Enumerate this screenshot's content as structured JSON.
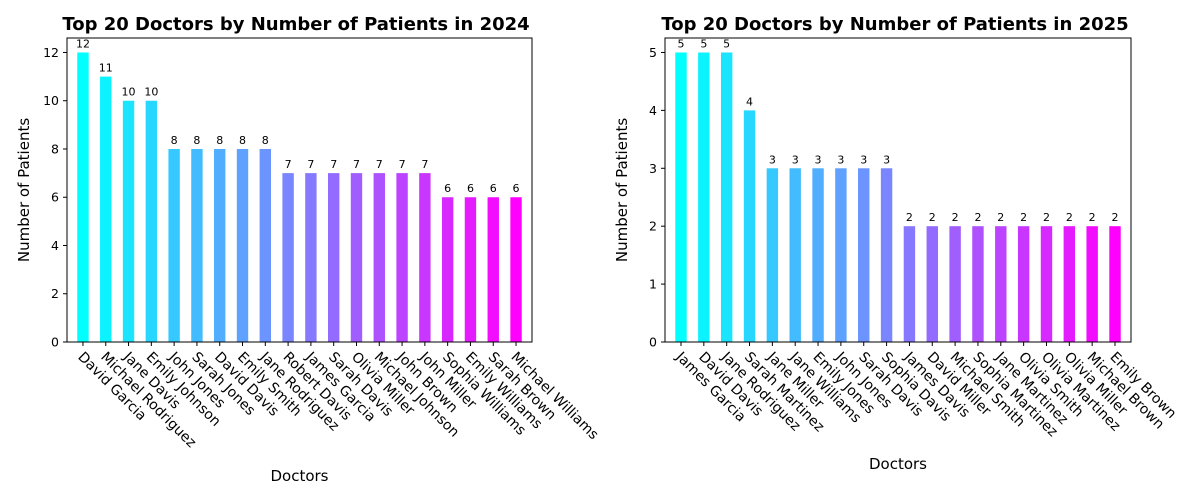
{
  "chart_data": [
    {
      "type": "bar",
      "title": "Top 20 Doctors by Number of Patients in 2024",
      "xlabel": "Doctors",
      "ylabel": "Number of Patients",
      "ylim": [
        0,
        12.6
      ],
      "yticks": [
        "0",
        "2",
        "4",
        "6",
        "8",
        "10",
        "12"
      ],
      "categories": [
        "David Garcia",
        "Michael Rodriguez",
        "Jane Davis",
        "Emily Johnson",
        "John Jones",
        "Sarah Jones",
        "David Davis",
        "Emily Smith",
        "Jane Rodriguez",
        "Robert Davis",
        "James Garcia",
        "Sarah Davis",
        "Olivia Miller",
        "Michael Johnson",
        "John Brown",
        "John Miller",
        "Sophia Williams",
        "Emily Williams",
        "Sarah Brown",
        "Michael Williams"
      ],
      "values": [
        12,
        11,
        10,
        10,
        8,
        8,
        8,
        8,
        8,
        7,
        7,
        7,
        7,
        7,
        7,
        7,
        6,
        6,
        6,
        6
      ],
      "data_labels": [
        "12",
        "11",
        "10",
        "10",
        "8",
        "8",
        "8",
        "8",
        "8",
        "7",
        "7",
        "7",
        "7",
        "7",
        "7",
        "7",
        "6",
        "6",
        "6",
        "6"
      ],
      "colormap": "cool",
      "grid": false
    },
    {
      "type": "bar",
      "title": "Top 20 Doctors by Number of Patients in 2025",
      "xlabel": "Doctors",
      "ylabel": "Number of Patients",
      "ylim": [
        0,
        5.25
      ],
      "yticks": [
        "0",
        "1",
        "2",
        "3",
        "4",
        "5"
      ],
      "categories": [
        "James Garcia",
        "David Davis",
        "Jane Rodriguez",
        "Sarah Martinez",
        "Jane Miller",
        "Jane Williams",
        "Emily Jones",
        "John Jones",
        "Sarah Davis",
        "Sophia Davis",
        "James Davis",
        "David Miller",
        "Michael Smith",
        "Sophia Martinez",
        "Jane Martinez",
        "Olivia Smith",
        "Olivia Martinez",
        "Olivia Miller",
        "Michael Brown",
        "Emily Brown"
      ],
      "values": [
        5,
        5,
        5,
        4,
        3,
        3,
        3,
        3,
        3,
        3,
        2,
        2,
        2,
        2,
        2,
        2,
        2,
        2,
        2,
        2
      ],
      "data_labels": [
        "5",
        "5",
        "5",
        "4",
        "3",
        "3",
        "3",
        "3",
        "3",
        "3",
        "2",
        "2",
        "2",
        "2",
        "2",
        "2",
        "2",
        "2",
        "2",
        "2"
      ],
      "colormap": "cool",
      "grid": false
    }
  ]
}
